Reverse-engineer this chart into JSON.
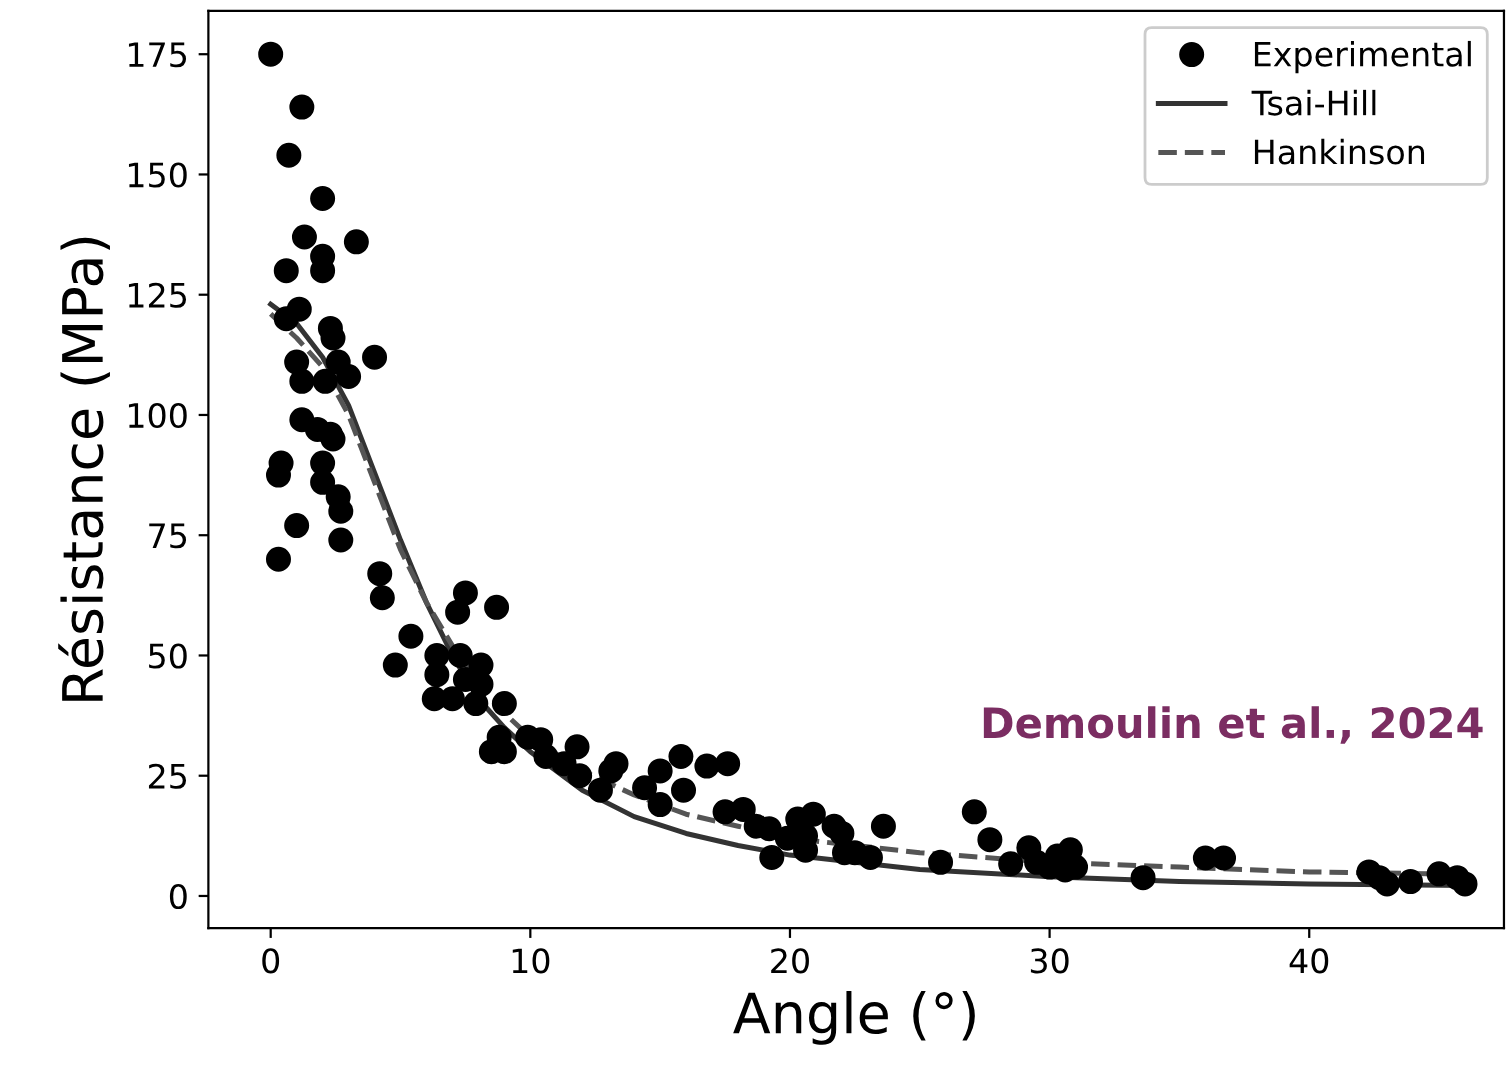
{
  "chart_data": {
    "type": "scatter",
    "xlabel": "Angle (°)",
    "ylabel": "Résistance (MPa)",
    "xlim": [
      -2.4,
      47.5
    ],
    "ylim": [
      -6.7,
      184
    ],
    "xticks": [
      0,
      10,
      20,
      30,
      40
    ],
    "yticks": [
      0,
      25,
      50,
      75,
      100,
      125,
      150,
      175
    ],
    "grid": false,
    "legend": "top right",
    "annotations": [
      "Demoulin et al., 2024"
    ],
    "series": [
      {
        "name": "Experimental",
        "marker": "circle",
        "color": "#000000",
        "x": [
          0,
          1.2,
          0.7,
          2.0,
          1.3,
          3.3,
          2.0,
          2.0,
          0.6,
          1.1,
          0.6,
          4.0,
          2.3,
          2.4,
          2.6,
          1.0,
          1.2,
          3.0,
          2.1,
          1.2,
          1.8,
          2.3,
          2.4,
          0.4,
          0.3,
          2.0,
          2.0,
          2.6,
          2.7,
          1.0,
          2.7,
          0.3,
          4.2,
          4.3,
          7.5,
          7.2,
          8.7,
          5.4,
          4.8,
          6.4,
          7.3,
          6.4,
          8.1,
          7.5,
          8.1,
          6.3,
          7.0,
          7.9,
          9.0,
          8.8,
          8.5,
          9.0,
          9.9,
          10.4,
          10.6,
          11.3,
          11.8,
          11.9,
          12.7,
          13.1,
          13.3,
          14.4,
          15.0,
          15.0,
          15.8,
          15.9,
          16.8,
          17.6,
          17.5,
          18.2,
          18.7,
          19.2,
          19.3,
          20.3,
          20.9,
          19.9,
          20.6,
          21.7,
          22.0,
          22.1,
          22.5,
          20.6,
          23.1,
          23.6,
          25.8,
          27.1,
          27.7,
          28.5,
          29.2,
          29.5,
          30.0,
          30.3,
          30.8,
          31.0,
          30.6,
          33.6,
          36.0,
          36.7,
          42.3,
          42.7,
          43.0,
          43.9,
          45.0,
          45.7,
          46.0
        ],
        "values": [
          175,
          164,
          154,
          145,
          137,
          136,
          133,
          130,
          130,
          122,
          120,
          112,
          118,
          116,
          111,
          111,
          107,
          108,
          107,
          99,
          97,
          96,
          95,
          90,
          87.5,
          90,
          86,
          83,
          80,
          77,
          74,
          70,
          67,
          62,
          63,
          59,
          60,
          54,
          48,
          50,
          50,
          46,
          48,
          45,
          44,
          41,
          41,
          40,
          40,
          33,
          30,
          30,
          33,
          32.5,
          29,
          27.5,
          31,
          25,
          22,
          26,
          27.5,
          22.5,
          26,
          19,
          29,
          22,
          27,
          27.5,
          17.5,
          18,
          14.5,
          14,
          8,
          16,
          17,
          12,
          12.5,
          14.5,
          13,
          9,
          9,
          9.5,
          8,
          14.5,
          7,
          17.5,
          11.7,
          6.7,
          10,
          7,
          6,
          8.3,
          9.6,
          6,
          5.4,
          3.8,
          7.9,
          7.9,
          5,
          3.8,
          2.5,
          3,
          4.6,
          3.8,
          2.5
        ]
      },
      {
        "name": "Tsai-Hill",
        "type": "line",
        "line_style": "solid",
        "marker": "none",
        "color": "#333333",
        "x": [
          0,
          1,
          2,
          3,
          4,
          5,
          6,
          7,
          8,
          9,
          10,
          12,
          14,
          16,
          18,
          20,
          25,
          30,
          35,
          40,
          46
        ],
        "values": [
          123,
          119,
          112,
          102,
          88,
          74,
          61,
          50,
          41,
          35,
          30,
          22,
          16.5,
          13,
          10.5,
          8.5,
          5.5,
          4,
          3,
          2.5,
          2.2
        ]
      },
      {
        "name": "Hankinson",
        "type": "line",
        "line_style": "dashed",
        "marker": "none",
        "color": "#555555",
        "x": [
          0,
          1,
          2,
          3,
          4,
          5,
          6,
          7,
          8,
          9,
          10,
          12,
          14,
          16,
          18,
          20,
          25,
          30,
          35,
          40,
          46
        ],
        "values": [
          121,
          116,
          110,
          100,
          86,
          72,
          61,
          52,
          45,
          38,
          33,
          26,
          21,
          17,
          14.5,
          12,
          9,
          7,
          6,
          5,
          4.5
        ]
      }
    ]
  }
}
